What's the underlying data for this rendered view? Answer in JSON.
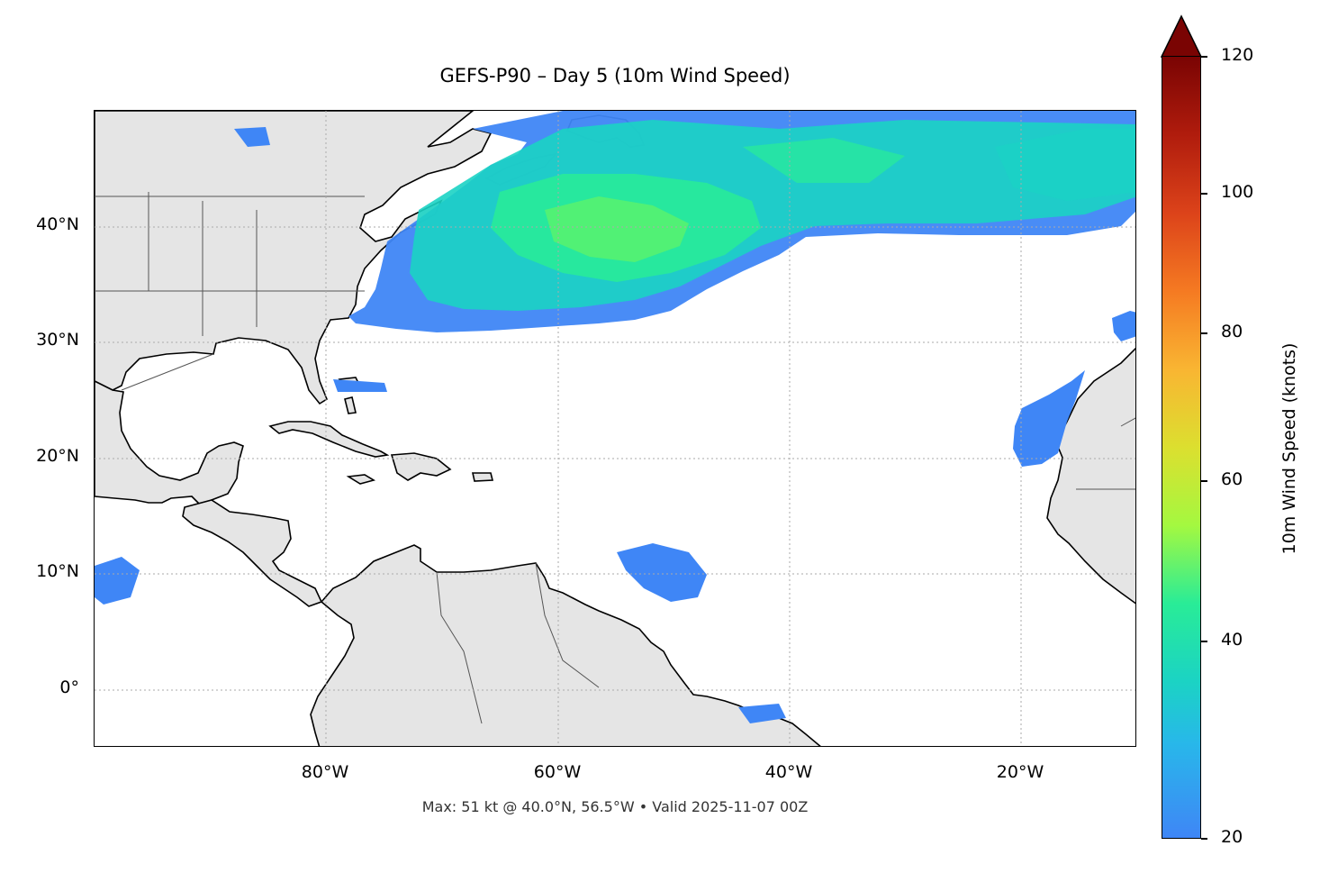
{
  "title": "GEFS-P90 – Day 5 (10m Wind Speed)",
  "footer": "Max: 51 kt @ 40.0°N, 56.5°W • Valid 2025-11-07 00Z",
  "map": {
    "extent_deg": {
      "lon": [
        -100,
        -10
      ],
      "lat": [
        -5,
        50
      ]
    },
    "lat_ticks": [
      "40°N",
      "30°N",
      "20°N",
      "10°N",
      "0°"
    ],
    "lon_ticks": [
      "80°W",
      "60°W",
      "40°W",
      "20°W"
    ],
    "land_color": "#e5e5e5",
    "coast_color": "#000000",
    "border_color": "#555555",
    "gridlines": true
  },
  "colorbar": {
    "label": "10m Wind Speed (knots)",
    "ticks": [
      "120",
      "100",
      "80",
      "60",
      "40",
      "20"
    ],
    "range": [
      20,
      120
    ],
    "extend": "max",
    "colormap": "turbo"
  },
  "max_point": {
    "value_kt": 51,
    "lat": 40.0,
    "lon": -56.5
  }
}
